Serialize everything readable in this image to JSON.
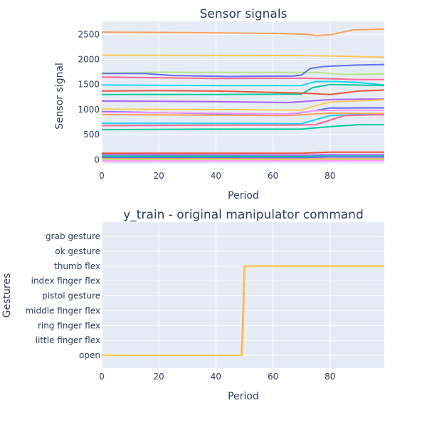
{
  "chart_data": [
    {
      "type": "line",
      "title": "Sensor signals",
      "xlabel": "Period",
      "ylabel": "Sensor signal",
      "xlim": [
        0,
        99
      ],
      "ylim": [
        -80,
        2760
      ],
      "x_ticks": [
        "0",
        "20",
        "40",
        "60",
        "80"
      ],
      "y_ticks": [
        "0",
        "500",
        "1000",
        "1500",
        "2000",
        "2500"
      ],
      "legend": "none",
      "grid": true,
      "series": [
        {
          "color": "#FFA15A",
          "values": [
            [
              0,
              2545
            ],
            [
              30,
              2535
            ],
            [
              60,
              2520
            ],
            [
              72,
              2500
            ],
            [
              75,
              2480
            ],
            [
              80,
              2490
            ],
            [
              88,
              2590
            ],
            [
              99,
              2605
            ]
          ]
        },
        {
          "color": "#FECB52",
          "values": [
            [
              0,
              2085
            ],
            [
              40,
              2080
            ],
            [
              70,
              2078
            ],
            [
              80,
              2070
            ],
            [
              99,
              2045
            ]
          ]
        },
        {
          "color": "#B6E880",
          "values": [
            [
              0,
              1730
            ],
            [
              20,
              1745
            ],
            [
              50,
              1740
            ],
            [
              75,
              1740
            ],
            [
              85,
              1700
            ],
            [
              99,
              1710
            ]
          ]
        },
        {
          "color": "#636EFA",
          "values": [
            [
              0,
              1720
            ],
            [
              15,
              1720
            ],
            [
              25,
              1680
            ],
            [
              45,
              1660
            ],
            [
              67,
              1670
            ],
            [
              70,
              1690
            ],
            [
              73,
              1820
            ],
            [
              78,
              1860
            ],
            [
              90,
              1890
            ],
            [
              99,
              1900
            ]
          ]
        },
        {
          "color": "#FF6692",
          "values": [
            [
              0,
              1650
            ],
            [
              40,
              1620
            ],
            [
              70,
              1625
            ],
            [
              80,
              1615
            ],
            [
              90,
              1600
            ],
            [
              99,
              1600
            ]
          ]
        },
        {
          "color": "#19D3F3",
          "values": [
            [
              0,
              1490
            ],
            [
              40,
              1480
            ],
            [
              70,
              1480
            ],
            [
              75,
              1560
            ],
            [
              82,
              1560
            ],
            [
              90,
              1540
            ],
            [
              99,
              1490
            ]
          ]
        },
        {
          "color": "#00CC96",
          "values": [
            [
              0,
              1300
            ],
            [
              40,
              1300
            ],
            [
              70,
              1310
            ],
            [
              74,
              1440
            ],
            [
              80,
              1500
            ],
            [
              99,
              1480
            ]
          ]
        },
        {
          "color": "#EF553B",
          "values": [
            [
              0,
              1370
            ],
            [
              20,
              1380
            ],
            [
              40,
              1370
            ],
            [
              70,
              1330
            ],
            [
              80,
              1300
            ],
            [
              90,
              1370
            ],
            [
              99,
              1390
            ]
          ]
        },
        {
          "color": "#AB63FA",
          "values": [
            [
              0,
              1170
            ],
            [
              20,
              1165
            ],
            [
              40,
              1160
            ],
            [
              65,
              1140
            ],
            [
              70,
              1160
            ],
            [
              80,
              1200
            ],
            [
              90,
              1210
            ],
            [
              99,
              1210
            ]
          ]
        },
        {
          "color": "#FECB52",
          "values": [
            [
              0,
              1010
            ],
            [
              40,
              1000
            ],
            [
              70,
              990
            ],
            [
              75,
              1080
            ],
            [
              80,
              1150
            ],
            [
              99,
              1195
            ]
          ]
        },
        {
          "color": "#636EFA",
          "values": [
            [
              0,
              960
            ],
            [
              20,
              940
            ],
            [
              40,
              920
            ],
            [
              65,
              910
            ],
            [
              70,
              940
            ],
            [
              80,
              1030
            ],
            [
              99,
              1035
            ]
          ]
        },
        {
          "color": "#FF97FF",
          "values": [
            [
              0,
              945
            ],
            [
              40,
              930
            ],
            [
              65,
              910
            ],
            [
              75,
              980
            ],
            [
              85,
              990
            ],
            [
              99,
              985
            ]
          ]
        },
        {
          "color": "#FFA15A",
          "values": [
            [
              0,
              900
            ],
            [
              40,
              890
            ],
            [
              65,
              880
            ],
            [
              80,
              930
            ],
            [
              99,
              920
            ]
          ]
        },
        {
          "color": "#19D3F3",
          "values": [
            [
              0,
              725
            ],
            [
              40,
              725
            ],
            [
              70,
              720
            ],
            [
              80,
              880
            ],
            [
              90,
              900
            ],
            [
              99,
              900
            ]
          ]
        },
        {
          "color": "#FF6692",
          "values": [
            [
              0,
              680
            ],
            [
              40,
              690
            ],
            [
              65,
              690
            ],
            [
              75,
              700
            ],
            [
              85,
              880
            ],
            [
              99,
              900
            ]
          ]
        },
        {
          "color": "#00CC96",
          "values": [
            [
              0,
              600
            ],
            [
              40,
              610
            ],
            [
              70,
              610
            ],
            [
              80,
              660
            ],
            [
              90,
              700
            ],
            [
              99,
              700
            ]
          ]
        },
        {
          "color": "#EF553B",
          "values": [
            [
              0,
              130
            ],
            [
              40,
              130
            ],
            [
              70,
              130
            ],
            [
              80,
              150
            ],
            [
              99,
              150
            ]
          ]
        },
        {
          "color": "#AB63FA",
          "values": [
            [
              0,
              100
            ],
            [
              40,
              95
            ],
            [
              70,
              90
            ],
            [
              80,
              100
            ],
            [
              99,
              100
            ]
          ]
        },
        {
          "color": "#00CC96",
          "values": [
            [
              0,
              70
            ],
            [
              40,
              70
            ],
            [
              70,
              65
            ],
            [
              80,
              70
            ],
            [
              99,
              70
            ]
          ]
        },
        {
          "color": "#636EFA",
          "values": [
            [
              0,
              45
            ],
            [
              40,
              40
            ],
            [
              70,
              40
            ],
            [
              80,
              55
            ],
            [
              99,
              55
            ]
          ]
        },
        {
          "color": "#FFA15A",
          "values": [
            [
              0,
              20
            ],
            [
              40,
              20
            ],
            [
              70,
              15
            ],
            [
              99,
              20
            ]
          ]
        },
        {
          "color": "#B6E880",
          "values": [
            [
              0,
              0
            ],
            [
              40,
              0
            ],
            [
              70,
              -10
            ],
            [
              99,
              0
            ]
          ]
        },
        {
          "color": "#FF97FF",
          "values": [
            [
              0,
              -25
            ],
            [
              40,
              -25
            ],
            [
              70,
              -25
            ],
            [
              99,
              -20
            ]
          ]
        }
      ]
    },
    {
      "type": "line",
      "title": "y_train - original manipulator command",
      "xlabel": "Period",
      "ylabel": "Gestures",
      "xlim": [
        0,
        99
      ],
      "x_ticks": [
        "0",
        "20",
        "40",
        "60",
        "80"
      ],
      "categories": [
        "open",
        "little finger flex",
        "ring finger flex",
        "middle finger flex",
        "pistol gesture",
        "index finger flex",
        "thumb flex",
        "ok gesture",
        "grab gesture"
      ],
      "legend": "none",
      "grid": true,
      "series": [
        {
          "color": "#FFA15A",
          "values": [
            [
              0,
              0
            ],
            [
              49,
              0
            ],
            [
              49.5,
              3
            ],
            [
              50,
              6
            ],
            [
              99,
              6
            ]
          ]
        },
        {
          "color": "#FECB52",
          "values": [
            [
              0,
              0
            ],
            [
              49.3,
              0
            ],
            [
              49.8,
              3
            ],
            [
              50.2,
              6
            ],
            [
              99,
              6
            ]
          ]
        }
      ]
    }
  ]
}
